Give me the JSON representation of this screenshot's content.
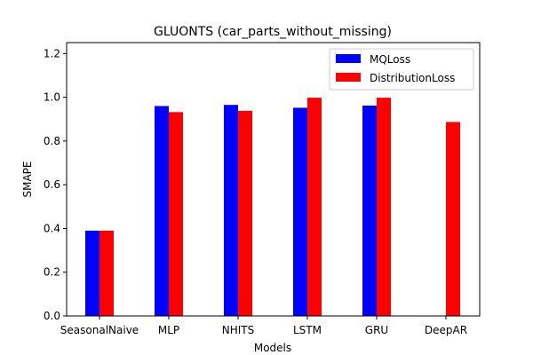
{
  "chart_data": {
    "type": "bar",
    "title": "GLUONTS (car_parts_without_missing)",
    "xlabel": "Models",
    "ylabel": "SMAPE",
    "categories": [
      "SeasonalNaive",
      "MLP",
      "NHITS",
      "LSTM",
      "GRU",
      "DeepAR"
    ],
    "series": [
      {
        "name": "MQLoss",
        "color": "#0000ff",
        "values": [
          0.39,
          0.96,
          0.965,
          0.952,
          0.962,
          null
        ]
      },
      {
        "name": "DistributionLoss",
        "color": "#ff0000",
        "values": [
          0.39,
          0.932,
          0.938,
          0.998,
          0.998,
          0.887
        ]
      }
    ],
    "ylim": [
      0,
      1.25
    ],
    "yticks": [
      0.0,
      0.2,
      0.4,
      0.6,
      0.8,
      1.0,
      1.2
    ],
    "ytick_labels": [
      "0.0",
      "0.2",
      "0.4",
      "0.6",
      "0.8",
      "1.0",
      "1.2"
    ],
    "grid": false,
    "legend": "top-right"
  }
}
